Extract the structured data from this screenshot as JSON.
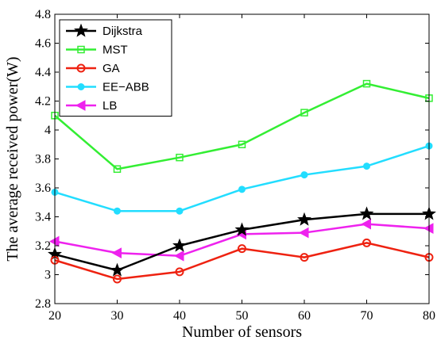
{
  "chart_data": {
    "type": "line",
    "xlabel": "Number of sensors",
    "ylabel": "The average received power(W)",
    "x": [
      20,
      30,
      40,
      50,
      60,
      70,
      80
    ],
    "xlim": [
      20,
      80
    ],
    "ylim": [
      2.8,
      4.8
    ],
    "xticks": [
      "20",
      "30",
      "40",
      "50",
      "60",
      "70",
      "80"
    ],
    "yticks": [
      "2.8",
      "3",
      "3.2",
      "3.4",
      "3.6",
      "3.8",
      "4",
      "4.2",
      "4.4",
      "4.6",
      "4.8"
    ],
    "grid": false,
    "legend_position": "top-left",
    "series": [
      {
        "name": "Dijkstra",
        "color": "#000000",
        "marker": "star",
        "values": [
          3.14,
          3.03,
          3.2,
          3.31,
          3.38,
          3.42,
          3.42
        ]
      },
      {
        "name": "MST",
        "color": "#33ee33",
        "marker": "square",
        "values": [
          4.1,
          3.73,
          3.81,
          3.9,
          4.12,
          4.32,
          4.22
        ]
      },
      {
        "name": "GA",
        "color": "#ee2211",
        "marker": "circle",
        "values": [
          3.1,
          2.97,
          3.02,
          3.18,
          3.12,
          3.22,
          3.12
        ]
      },
      {
        "name": "EE−ABB",
        "color": "#22ddff",
        "marker": "dot",
        "values": [
          3.57,
          3.44,
          3.44,
          3.59,
          3.69,
          3.75,
          3.89
        ]
      },
      {
        "name": "LB",
        "color": "#ee22ee",
        "marker": "triangle-left",
        "values": [
          3.23,
          3.15,
          3.13,
          3.28,
          3.29,
          3.35,
          3.32
        ]
      }
    ]
  }
}
